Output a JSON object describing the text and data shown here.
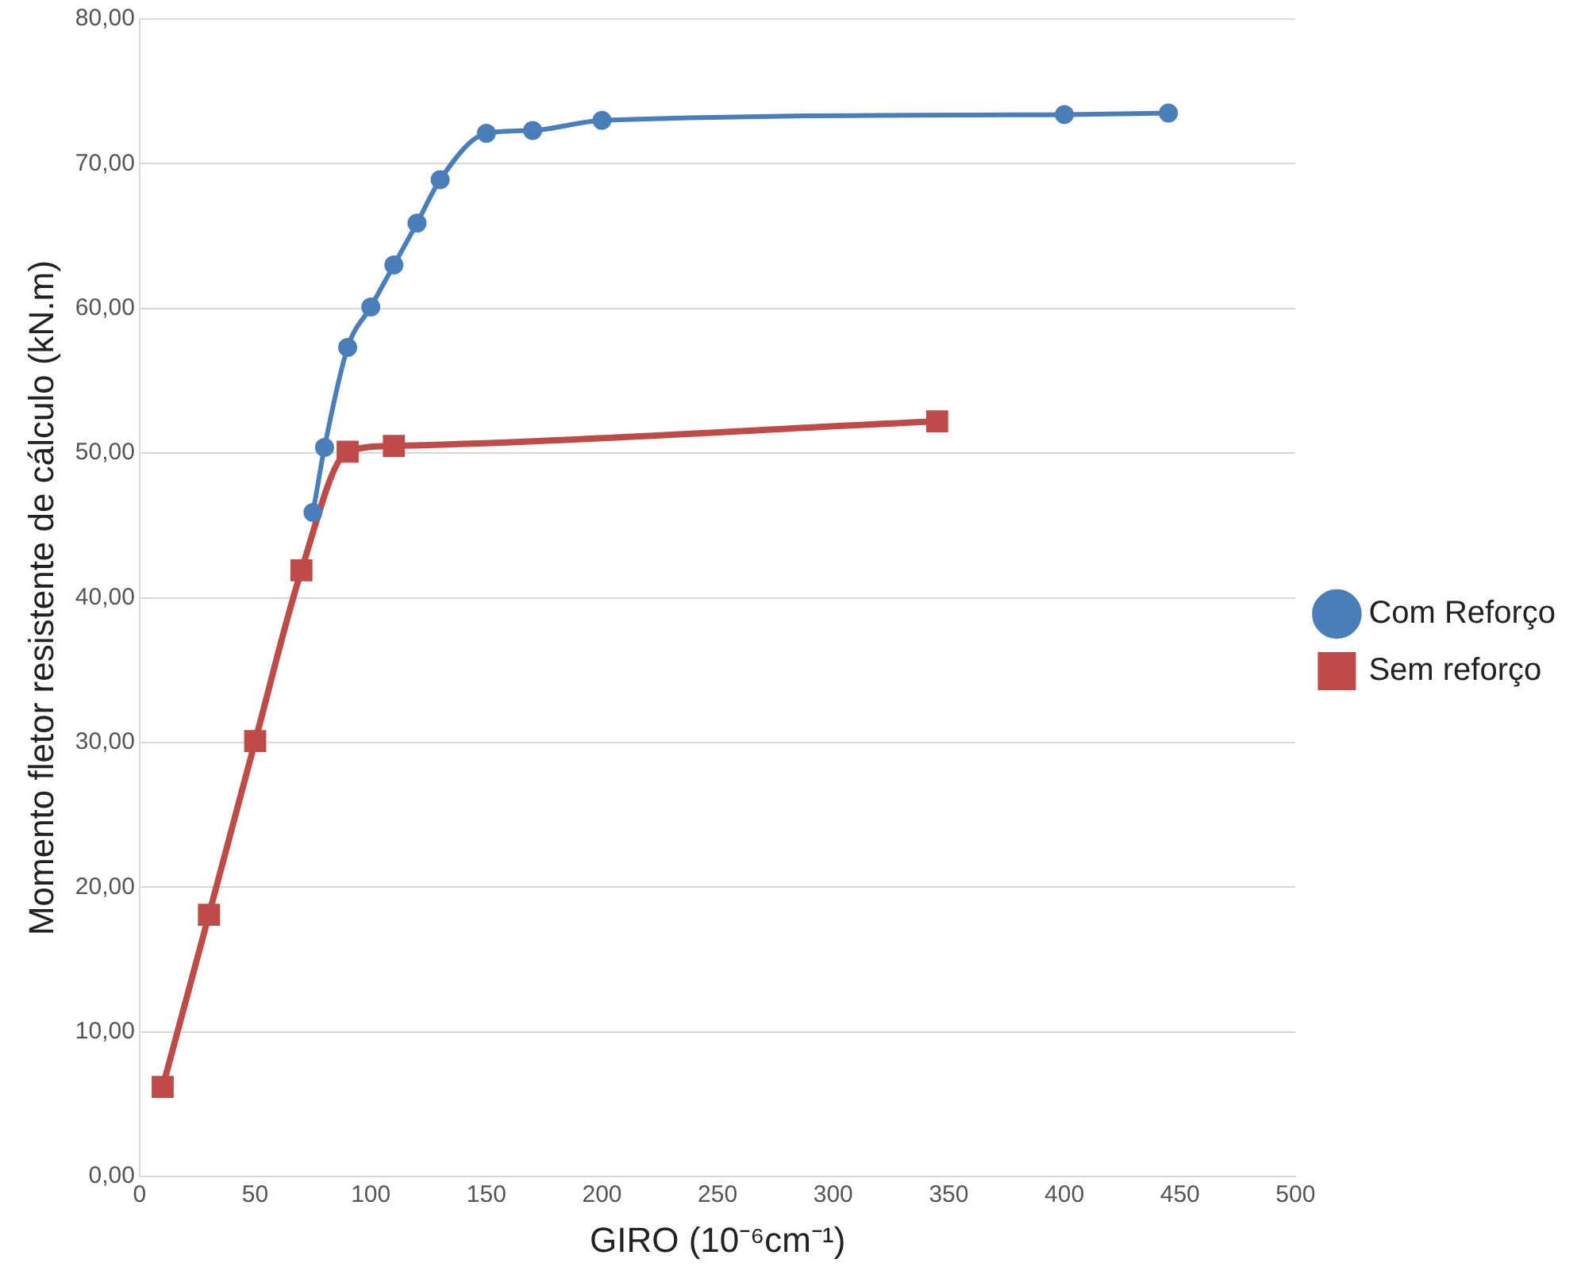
{
  "chart_data": {
    "type": "line",
    "xlabel": "GIRO (10⁻⁶cm⁻¹)",
    "ylabel": "Momento fletor resistente de cálculo (kN.m)",
    "xlim": [
      0,
      500
    ],
    "xticks": [
      0,
      50,
      100,
      150,
      200,
      250,
      300,
      350,
      400,
      450,
      500
    ],
    "ylim": [
      0,
      80
    ],
    "yticks": [
      {
        "value": 0,
        "label": "0,00"
      },
      {
        "value": 10,
        "label": "10,00"
      },
      {
        "value": 20,
        "label": "20,00"
      },
      {
        "value": 30,
        "label": "30,00"
      },
      {
        "value": 40,
        "label": "40,00"
      },
      {
        "value": 50,
        "label": "50,00"
      },
      {
        "value": 60,
        "label": "60,00"
      },
      {
        "value": 70,
        "label": "70,00"
      },
      {
        "value": 80,
        "label": "80,00"
      }
    ],
    "grid": "y",
    "legend": "right",
    "series": [
      {
        "name": "Com Reforço",
        "color": "#4a7ebb",
        "marker": "circle",
        "x": [
          75,
          80,
          90,
          100,
          110,
          120,
          130,
          150,
          170,
          200,
          400,
          445
        ],
        "values": [
          45.9,
          50.4,
          57.3,
          60.1,
          63.0,
          65.9,
          68.9,
          72.1,
          72.3,
          73.0,
          73.4,
          73.5
        ]
      },
      {
        "name": "Sem reforço",
        "color": "#be4b48",
        "marker": "square",
        "x": [
          10,
          30,
          50,
          70,
          90,
          110,
          345
        ],
        "values": [
          6.2,
          18.1,
          30.1,
          41.9,
          50.1,
          50.5,
          52.2
        ]
      }
    ]
  }
}
